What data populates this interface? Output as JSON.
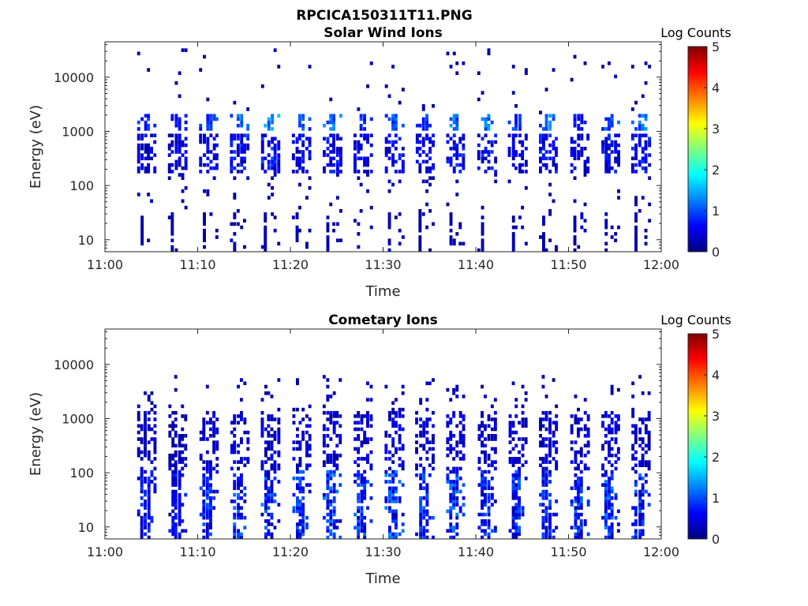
{
  "figure_title": "RPCICA150311T11.PNG",
  "chart_data": [
    {
      "type": "heatmap",
      "title": "Solar Wind Ions",
      "xlabel": "Time",
      "ylabel": "Energy (eV)",
      "y_scale": "log",
      "xlim": [
        "11:00",
        "12:00"
      ],
      "ylim": [
        6,
        45000
      ],
      "x_ticks": [
        "11:00",
        "11:10",
        "11:20",
        "11:30",
        "11:40",
        "11:50",
        "12:00"
      ],
      "y_ticks": [
        {
          "value": 10,
          "label": "10"
        },
        {
          "value": 100,
          "label": "100"
        },
        {
          "value": 1000,
          "label": "1000"
        },
        {
          "value": 10000,
          "label": "10000"
        }
      ],
      "colorbar": {
        "label": "Log Counts",
        "range": [
          0,
          5
        ],
        "ticks": [
          "0",
          "1",
          "2",
          "3",
          "4",
          "5"
        ],
        "colormap": "jet"
      },
      "scan_times_min": [
        4.5,
        7.8,
        11.2,
        14.5,
        17.8,
        21.2,
        24.5,
        27.8,
        31.2,
        34.5,
        37.8,
        41.2,
        44.5,
        47.8,
        51.2,
        54.5,
        57.8
      ],
      "peak_log_counts": [
        0.9,
        0.8,
        1.0,
        1.3,
        1.5,
        1.1,
        1.3,
        1.0,
        1.2,
        1.0,
        1.3,
        1.4,
        1.0,
        1.3,
        0.8,
        1.2,
        1.3
      ],
      "features": {
        "main_band_eV": [
          150,
          800
        ],
        "upper_band_eV": [
          1000,
          2000
        ],
        "low_band_eV": [
          6,
          30
        ]
      }
    },
    {
      "type": "heatmap",
      "title": "Cometary Ions",
      "xlabel": "Time",
      "ylabel": "Energy (eV)",
      "y_scale": "log",
      "xlim": [
        "11:00",
        "12:00"
      ],
      "ylim": [
        6,
        45000
      ],
      "x_ticks": [
        "11:00",
        "11:10",
        "11:20",
        "11:30",
        "11:40",
        "11:50",
        "12:00"
      ],
      "y_ticks": [
        {
          "value": 10,
          "label": "10"
        },
        {
          "value": 100,
          "label": "100"
        },
        {
          "value": 1000,
          "label": "1000"
        },
        {
          "value": 10000,
          "label": "10000"
        }
      ],
      "colorbar": {
        "label": "Log Counts",
        "range": [
          0,
          5
        ],
        "ticks": [
          "0",
          "1",
          "2",
          "3",
          "4",
          "5"
        ],
        "colormap": "jet"
      },
      "scan_times_min": [
        4.5,
        7.8,
        11.2,
        14.5,
        17.8,
        21.2,
        24.5,
        27.8,
        31.2,
        34.5,
        37.8,
        41.2,
        44.5,
        47.8,
        51.2,
        54.5,
        57.8
      ],
      "peak_log_counts": [
        0.8,
        0.7,
        1.0,
        1.1,
        1.2,
        1.1,
        1.2,
        1.1,
        1.3,
        1.1,
        1.2,
        1.0,
        1.1,
        1.0,
        1.1,
        1.2,
        1.1
      ],
      "features": {
        "main_band_eV": [
          6,
          1200
        ],
        "sparse_top_eV": [
          1200,
          6000
        ]
      }
    }
  ]
}
